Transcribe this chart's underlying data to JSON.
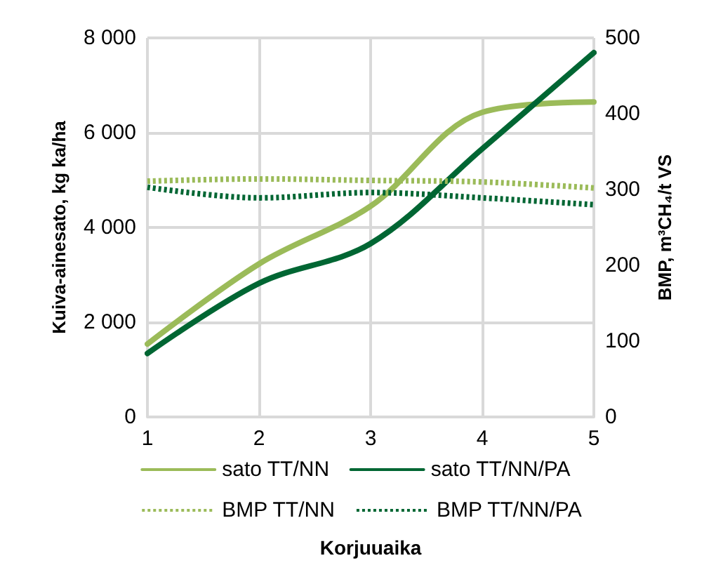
{
  "chart_data": {
    "type": "line",
    "xlabel": "Korjuuaika",
    "ylabel": "Kuiva-ainesato, kg ka/ha",
    "y2label": "BMP, m³CH₄/t VS",
    "x": [
      1,
      2,
      3,
      4,
      5
    ],
    "xlim": [
      1,
      5
    ],
    "xticks": [
      1,
      2,
      3,
      4,
      5
    ],
    "ylim": [
      0,
      8000
    ],
    "yticks": [
      {
        "value": 0,
        "label": "0"
      },
      {
        "value": 2000,
        "label": "2 000"
      },
      {
        "value": 4000,
        "label": "4 000"
      },
      {
        "value": 6000,
        "label": "6 000"
      },
      {
        "value": 8000,
        "label": "8 000"
      }
    ],
    "y2lim": [
      0,
      500
    ],
    "y2ticks": [
      0,
      100,
      200,
      300,
      400,
      500
    ],
    "grid": true,
    "legend": "bottom",
    "marker": "none",
    "series": [
      {
        "name": "sato TT/NN",
        "color": "#9bbb59",
        "values": [
          1540,
          3230,
          4450,
          6430,
          6650
        ]
      },
      {
        "name": "sato TT/NN/PA",
        "color": "#006633",
        "values": [
          1340,
          2820,
          3660,
          5660,
          7690
        ]
      },
      {
        "name": "BMP TT/NN",
        "color": "#9bbb59",
        "values": [
          311,
          314,
          312,
          310,
          302
        ],
        "axis": "y2",
        "line_style": "dotted"
      },
      {
        "name": "BMP TT/NN/PA",
        "color": "#006633",
        "values": [
          303,
          289,
          296,
          289,
          280
        ],
        "axis": "y2",
        "line_style": "dotted"
      }
    ]
  }
}
